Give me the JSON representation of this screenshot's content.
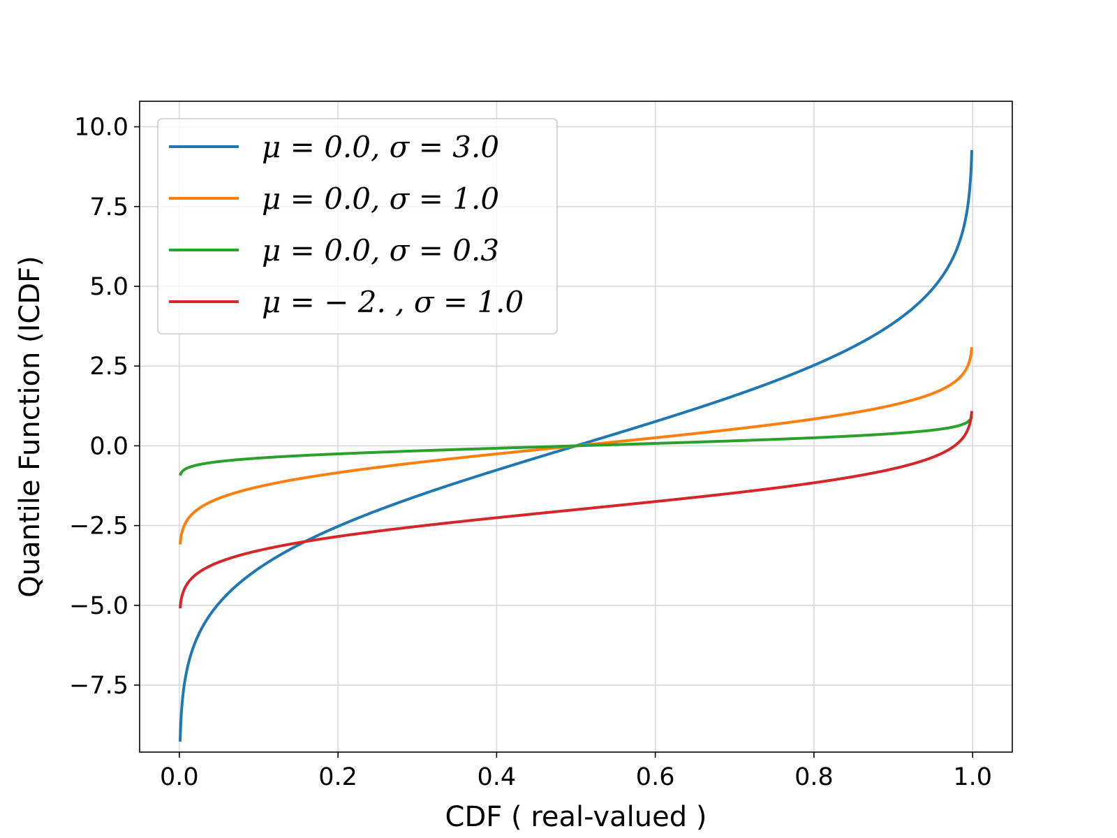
{
  "chart_data": {
    "type": "line",
    "xlabel": "CDF ( real-valued )",
    "ylabel": "Quantile Function (ICDF)",
    "xlim": [
      -0.05,
      1.05
    ],
    "ylim": [
      -9.6,
      10.8
    ],
    "xticks": [
      0.0,
      0.2,
      0.4,
      0.6,
      0.8,
      1.0
    ],
    "xtick_labels": [
      "0.0",
      "0.2",
      "0.4",
      "0.6",
      "0.8",
      "1.0"
    ],
    "yticks": [
      -7.5,
      -5.0,
      -2.5,
      0.0,
      2.5,
      5.0,
      7.5,
      10.0
    ],
    "ytick_labels": [
      "−7.5",
      "−5.0",
      "−2.5",
      "0.0",
      "2.5",
      "5.0",
      "7.5",
      "10.0"
    ],
    "grid": true,
    "legend_position": "top-left",
    "series": [
      {
        "name": "μ = 0.0,  σ = 3.0",
        "mu": 0.0,
        "sigma": 3.0,
        "color": "#1f77b4"
      },
      {
        "name": "μ = 0.0,  σ = 1.0",
        "mu": 0.0,
        "sigma": 1.0,
        "color": "#ff7f0e"
      },
      {
        "name": "μ = 0.0,  σ = 0.3",
        "mu": 0.0,
        "sigma": 0.3,
        "color": "#2ca02c"
      },
      {
        "name": "μ = − 2. ,  σ = 1.0",
        "mu": -2.0,
        "sigma": 1.0,
        "color": "#d62728"
      }
    ],
    "x_range": [
      0.001,
      0.999
    ]
  }
}
